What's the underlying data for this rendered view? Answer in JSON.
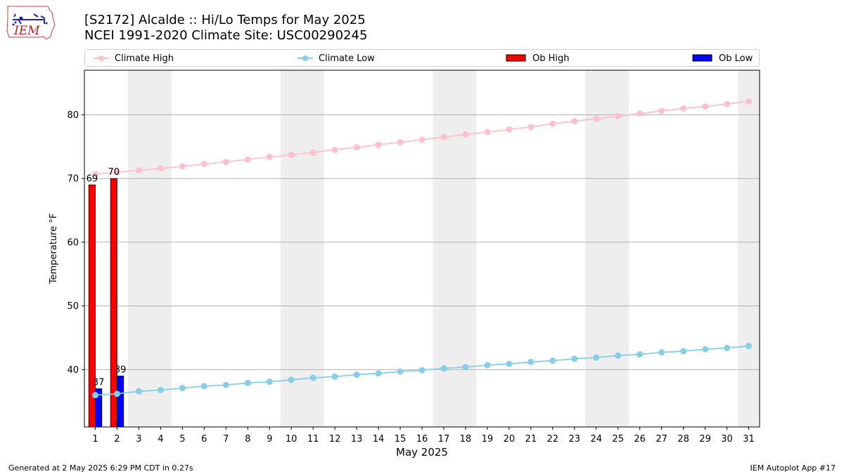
{
  "header": {
    "title_line1": "[S2172] Alcalde :: Hi/Lo Temps for May 2025",
    "title_line2": "NCEI 1991-2020 Climate Site: USC00290245"
  },
  "logo": {
    "text": "IEM"
  },
  "legend": {
    "placement": "top, above plot",
    "items": [
      {
        "label": "Climate High",
        "kind": "line-marker",
        "color": "#ffc0cb"
      },
      {
        "label": "Climate Low",
        "kind": "line-marker",
        "color": "#87ceeb"
      },
      {
        "label": "Ob High",
        "kind": "bar",
        "color": "#ff0000"
      },
      {
        "label": "Ob Low",
        "kind": "bar",
        "color": "#0000ff"
      }
    ]
  },
  "footer": {
    "left": "Generated at 2 May 2025 6:29 PM CDT in 0.27s",
    "right": "IEM Autoplot App #17"
  },
  "chart_data": {
    "type": "bar",
    "title": "[S2172] Alcalde :: Hi/Lo Temps for May 2025",
    "subtitle": "NCEI 1991-2020 Climate Site: USC00290245",
    "xlabel": "May 2025",
    "ylabel": "Temperature °F",
    "xlim": [
      0.5,
      31.5
    ],
    "ylim": [
      31,
      87
    ],
    "grid": "horizontal",
    "x": [
      1,
      2,
      3,
      4,
      5,
      6,
      7,
      8,
      9,
      10,
      11,
      12,
      13,
      14,
      15,
      16,
      17,
      18,
      19,
      20,
      21,
      22,
      23,
      24,
      25,
      26,
      27,
      28,
      29,
      30,
      31
    ],
    "x_tick_labels": [
      "1",
      "2",
      "3",
      "4",
      "5",
      "6",
      "7",
      "8",
      "9",
      "10",
      "11",
      "12",
      "13",
      "14",
      "15",
      "16",
      "17",
      "18",
      "19",
      "20",
      "21",
      "22",
      "23",
      "24",
      "25",
      "26",
      "27",
      "28",
      "29",
      "30",
      "31"
    ],
    "y_ticks": [
      40,
      50,
      60,
      70,
      80
    ],
    "y_tick_labels": [
      "40",
      "50",
      "60",
      "70",
      "80"
    ],
    "weekend_shading": [
      [
        3,
        4
      ],
      [
        10,
        11
      ],
      [
        17,
        18
      ],
      [
        24,
        25
      ],
      [
        31,
        31
      ]
    ],
    "shading_color": "#eeeeee",
    "series": [
      {
        "name": "Climate High",
        "type": "line",
        "color": "#ffc0cb",
        "x": [
          1,
          2,
          3,
          4,
          5,
          6,
          7,
          8,
          9,
          10,
          11,
          12,
          13,
          14,
          15,
          16,
          17,
          18,
          19,
          20,
          21,
          22,
          23,
          24,
          25,
          26,
          27,
          28,
          29,
          30,
          31
        ],
        "values": [
          70.7,
          71.0,
          71.3,
          71.6,
          71.9,
          72.3,
          72.6,
          73.0,
          73.4,
          73.7,
          74.1,
          74.5,
          74.9,
          75.3,
          75.7,
          76.1,
          76.5,
          76.9,
          77.3,
          77.7,
          78.1,
          78.6,
          79.0,
          79.4,
          79.8,
          80.2,
          80.6,
          81.0,
          81.3,
          81.7,
          82.1
        ]
      },
      {
        "name": "Climate Low",
        "type": "line",
        "color": "#87ceeb",
        "x": [
          1,
          2,
          3,
          4,
          5,
          6,
          7,
          8,
          9,
          10,
          11,
          12,
          13,
          14,
          15,
          16,
          17,
          18,
          19,
          20,
          21,
          22,
          23,
          24,
          25,
          26,
          27,
          28,
          29,
          30,
          31
        ],
        "values": [
          36.0,
          36.2,
          36.6,
          36.8,
          37.1,
          37.4,
          37.6,
          37.9,
          38.1,
          38.4,
          38.7,
          38.9,
          39.2,
          39.4,
          39.7,
          39.9,
          40.2,
          40.4,
          40.7,
          40.9,
          41.2,
          41.4,
          41.7,
          41.9,
          42.2,
          42.4,
          42.7,
          42.9,
          43.2,
          43.4,
          43.7
        ]
      },
      {
        "name": "Ob High",
        "type": "bar",
        "color": "#ff0000",
        "x": [
          1,
          2
        ],
        "values": [
          69,
          70
        ],
        "labels": [
          "69",
          "70"
        ]
      },
      {
        "name": "Ob Low",
        "type": "bar",
        "color": "#0000ff",
        "x": [
          1,
          2
        ],
        "values": [
          37,
          39
        ],
        "labels": [
          "37",
          "39"
        ]
      }
    ]
  }
}
